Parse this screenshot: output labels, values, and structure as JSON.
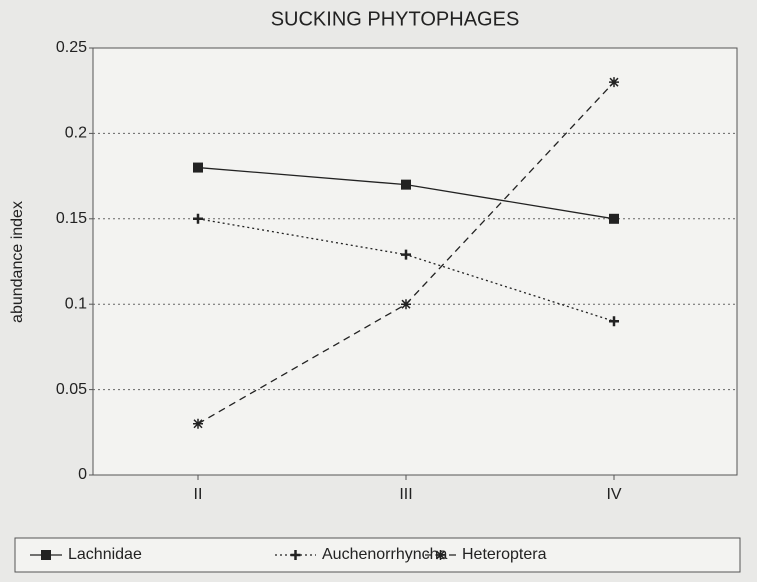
{
  "chart_data": {
    "type": "line",
    "title": "SUCKING PHYTOPHAGES",
    "y_label": "abundance index",
    "categories": [
      "II",
      "III",
      "IV"
    ],
    "series": [
      {
        "name": "Lachnidae",
        "color": "#222222",
        "dash": "solid",
        "marker": "square",
        "values": [
          0.18,
          0.17,
          0.15
        ]
      },
      {
        "name": "Auchenorrhyncha",
        "color": "#222222",
        "dash": "dotted",
        "marker": "plus",
        "values": [
          0.15,
          0.129,
          0.09
        ]
      },
      {
        "name": "Heteroptera",
        "color": "#222222",
        "dash": "dashed",
        "marker": "asterisk",
        "values": [
          0.03,
          0.1,
          0.23
        ]
      }
    ],
    "ylim": [
      0,
      0.25
    ],
    "yticks": [
      0,
      0.05,
      0.1,
      0.15,
      0.2,
      0.25
    ],
    "grid": true,
    "legend": "bottom"
  }
}
